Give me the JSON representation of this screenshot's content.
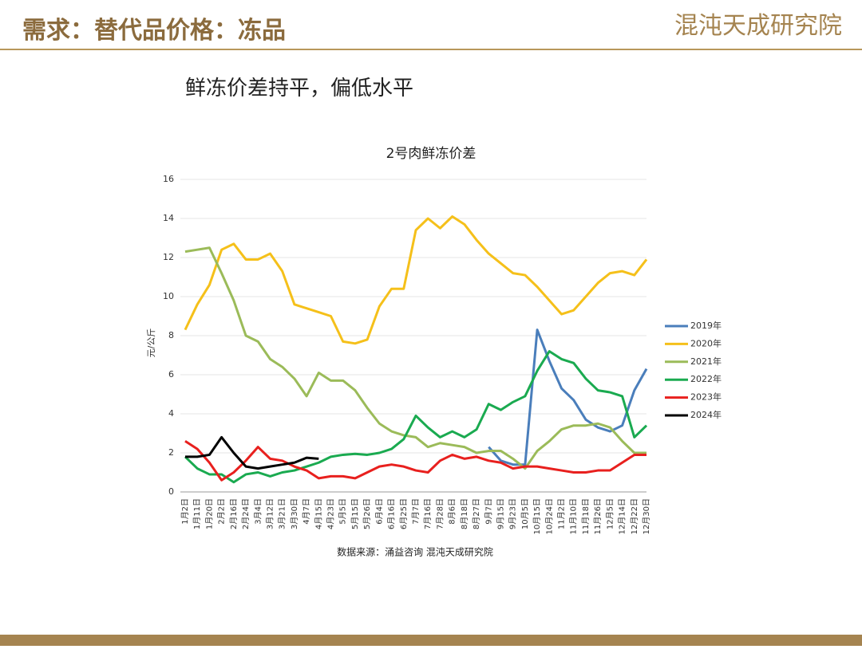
{
  "header": {
    "title": "需求：替代品价格：冻品",
    "logo": "混沌天成研究院"
  },
  "subtitle": "鲜冻价差持平，偏低水平",
  "chart_data": {
    "type": "line",
    "title": "2号肉鲜冻价差",
    "y_label": "元/公斤",
    "categories": [
      "1月2日",
      "1月11日",
      "1月20日",
      "2月2日",
      "2月16日",
      "2月24日",
      "3月4日",
      "3月12日",
      "3月21日",
      "3月30日",
      "4月7日",
      "4月15日",
      "4月23日",
      "5月5日",
      "5月15日",
      "5月26日",
      "6月4日",
      "6月16日",
      "6月25日",
      "7月7日",
      "7月16日",
      "7月28日",
      "8月6日",
      "8月18日",
      "8月27日",
      "9月7日",
      "9月15日",
      "9月23日",
      "10月5日",
      "10月15日",
      "10月24日",
      "11月2日",
      "11月10日",
      "11月18日",
      "11月26日",
      "12月5日",
      "12月14日",
      "12月22日",
      "12月30日"
    ],
    "series": [
      {
        "name": "2019年",
        "color": "#4a7ebb",
        "values": [
          null,
          null,
          null,
          null,
          null,
          null,
          null,
          null,
          null,
          null,
          null,
          null,
          null,
          null,
          null,
          null,
          null,
          null,
          null,
          null,
          null,
          null,
          null,
          null,
          null,
          2.3,
          1.6,
          1.4,
          1.4,
          8.3,
          6.7,
          5.3,
          4.7,
          3.7,
          3.3,
          3.1,
          3.4,
          5.2,
          6.3
        ]
      },
      {
        "name": "2020年",
        "color": "#f5c01a",
        "values": [
          8.3,
          9.6,
          10.6,
          12.4,
          12.7,
          11.9,
          11.9,
          12.2,
          11.3,
          9.6,
          9.4,
          9.2,
          9.0,
          7.7,
          7.6,
          7.8,
          9.5,
          10.4,
          10.4,
          13.4,
          14.0,
          13.5,
          14.1,
          13.7,
          12.9,
          12.2,
          11.7,
          11.2,
          11.1,
          10.5,
          9.8,
          9.1,
          9.3,
          10.0,
          10.7,
          11.2,
          11.3,
          11.1,
          11.9
        ]
      },
      {
        "name": "2021年",
        "color": "#9bbb59",
        "values": [
          12.3,
          12.4,
          12.5,
          11.2,
          9.8,
          8.0,
          7.7,
          6.8,
          6.4,
          5.8,
          4.9,
          6.1,
          5.7,
          5.7,
          5.2,
          4.3,
          3.5,
          3.1,
          2.9,
          2.8,
          2.3,
          2.5,
          2.4,
          2.3,
          2.0,
          2.1,
          2.1,
          1.7,
          1.2,
          2.1,
          2.6,
          3.2,
          3.4,
          3.4,
          3.5,
          3.3,
          2.6,
          2.0,
          2.0
        ]
      },
      {
        "name": "2022年",
        "color": "#1aaa50",
        "values": [
          1.8,
          1.2,
          0.9,
          0.9,
          0.5,
          0.9,
          1.0,
          0.8,
          1.0,
          1.1,
          1.3,
          1.5,
          1.8,
          1.9,
          1.95,
          1.9,
          2.0,
          2.2,
          2.7,
          3.9,
          3.3,
          2.8,
          3.1,
          2.8,
          3.2,
          4.5,
          4.2,
          4.6,
          4.9,
          6.2,
          7.2,
          6.8,
          6.6,
          5.8,
          5.2,
          5.1,
          4.9,
          2.8,
          3.4
        ]
      },
      {
        "name": "2023年",
        "color": "#e8201e",
        "values": [
          2.6,
          2.2,
          1.5,
          0.6,
          1.0,
          1.6,
          2.3,
          1.7,
          1.6,
          1.3,
          1.1,
          0.7,
          0.8,
          0.8,
          0.7,
          1.0,
          1.3,
          1.4,
          1.3,
          1.1,
          1.0,
          1.6,
          1.9,
          1.7,
          1.8,
          1.6,
          1.5,
          1.2,
          1.3,
          1.3,
          1.2,
          1.1,
          1.0,
          1.0,
          1.1,
          1.1,
          1.5,
          1.9,
          1.9
        ]
      },
      {
        "name": "2024年",
        "color": "#000000",
        "values": [
          1.8,
          1.8,
          1.9,
          2.8,
          2.0,
          1.3,
          1.2,
          1.3,
          1.4,
          1.5,
          1.75,
          1.7,
          null,
          null,
          null,
          null,
          null,
          null,
          null,
          null,
          null,
          null,
          null,
          null,
          null,
          null,
          null,
          null,
          null,
          null,
          null,
          null,
          null,
          null,
          null,
          null,
          null,
          null,
          null
        ]
      }
    ],
    "ylim": [
      0,
      16
    ],
    "yticks": [
      0,
      2,
      4,
      6,
      8,
      10,
      12,
      14,
      16
    ],
    "legend": "right",
    "source": "数据来源：涌益咨询 混沌天成研究院"
  }
}
